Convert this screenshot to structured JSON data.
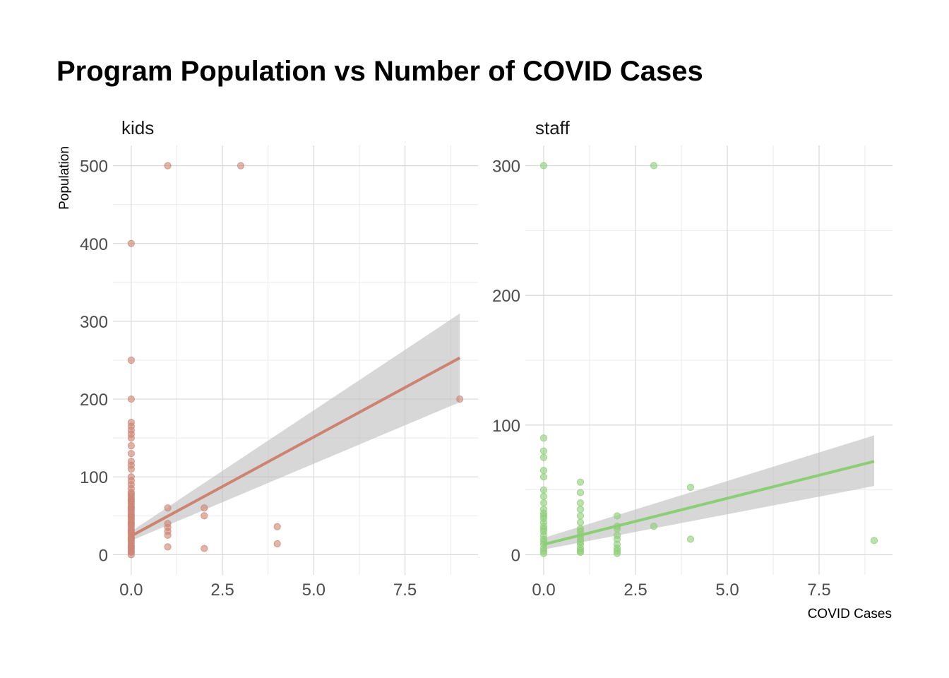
{
  "chart_data": {
    "type": "scatter",
    "title": "Program Population vs Number of COVID Cases",
    "xlabel": "COVID Cases",
    "ylabel": "Population",
    "grid": true,
    "legend": "none",
    "panels": [
      {
        "name": "kids",
        "color": "#cd8371",
        "xlim": [
          -0.5,
          9.5
        ],
        "ylim": [
          -26,
          526
        ],
        "xticks": [
          0,
          2.5,
          5,
          7.5
        ],
        "xtick_labels": [
          "0.0",
          "2.5",
          "5.0",
          "7.5"
        ],
        "yticks": [
          0,
          100,
          200,
          300,
          400,
          500
        ],
        "ytick_labels": [
          "0",
          "100",
          "200",
          "300",
          "400",
          "500"
        ],
        "points": [
          [
            0,
            0
          ],
          [
            0,
            3
          ],
          [
            0,
            5
          ],
          [
            0,
            8
          ],
          [
            0,
            10
          ],
          [
            0,
            12
          ],
          [
            0,
            15
          ],
          [
            0,
            18
          ],
          [
            0,
            20
          ],
          [
            0,
            22
          ],
          [
            0,
            25
          ],
          [
            0,
            28
          ],
          [
            0,
            30
          ],
          [
            0,
            32
          ],
          [
            0,
            35
          ],
          [
            0,
            38
          ],
          [
            0,
            40
          ],
          [
            0,
            42
          ],
          [
            0,
            45
          ],
          [
            0,
            48
          ],
          [
            0,
            50
          ],
          [
            0,
            52
          ],
          [
            0,
            55
          ],
          [
            0,
            58
          ],
          [
            0,
            60
          ],
          [
            0,
            62
          ],
          [
            0,
            65
          ],
          [
            0,
            68
          ],
          [
            0,
            70
          ],
          [
            0,
            72
          ],
          [
            0,
            75
          ],
          [
            0,
            78
          ],
          [
            0,
            80
          ],
          [
            0,
            85
          ],
          [
            0,
            90
          ],
          [
            0,
            95
          ],
          [
            0,
            100
          ],
          [
            0,
            110
          ],
          [
            0,
            115
          ],
          [
            0,
            120
          ],
          [
            0,
            130
          ],
          [
            0,
            140
          ],
          [
            0,
            150
          ],
          [
            0,
            155
          ],
          [
            0,
            160
          ],
          [
            0,
            165
          ],
          [
            0,
            170
          ],
          [
            0,
            200
          ],
          [
            0,
            250
          ],
          [
            0,
            400
          ],
          [
            1,
            500
          ],
          [
            1,
            60
          ],
          [
            1,
            40
          ],
          [
            1,
            35
          ],
          [
            1,
            30
          ],
          [
            1,
            25
          ],
          [
            1,
            10
          ],
          [
            2,
            60
          ],
          [
            2,
            50
          ],
          [
            2,
            8
          ],
          [
            3,
            500
          ],
          [
            4,
            36
          ],
          [
            4,
            14
          ],
          [
            9,
            200
          ]
        ],
        "fit": {
          "x": [
            0,
            9
          ],
          "y": [
            24,
            253
          ],
          "ci_lower": [
            18,
            196
          ],
          "ci_upper": [
            30,
            310
          ]
        }
      },
      {
        "name": "staff",
        "color": "#8cce75",
        "xlim": [
          -0.5,
          9.5
        ],
        "ylim": [
          -15.5,
          315.5
        ],
        "xticks": [
          0,
          2.5,
          5,
          7.5
        ],
        "xtick_labels": [
          "0.0",
          "2.5",
          "5.0",
          "7.5"
        ],
        "yticks": [
          0,
          100,
          200,
          300
        ],
        "ytick_labels": [
          "0",
          "100",
          "200",
          "300"
        ],
        "points": [
          [
            0,
            300
          ],
          [
            0,
            90
          ],
          [
            0,
            80
          ],
          [
            0,
            75
          ],
          [
            0,
            65
          ],
          [
            0,
            60
          ],
          [
            0,
            50
          ],
          [
            0,
            45
          ],
          [
            0,
            40
          ],
          [
            0,
            35
          ],
          [
            0,
            32
          ],
          [
            0,
            30
          ],
          [
            0,
            28
          ],
          [
            0,
            25
          ],
          [
            0,
            22
          ],
          [
            0,
            20
          ],
          [
            0,
            18
          ],
          [
            0,
            15
          ],
          [
            0,
            12
          ],
          [
            0,
            10
          ],
          [
            0,
            8
          ],
          [
            0,
            5
          ],
          [
            0,
            3
          ],
          [
            0,
            1
          ],
          [
            1,
            56
          ],
          [
            1,
            48
          ],
          [
            1,
            40
          ],
          [
            1,
            35
          ],
          [
            1,
            30
          ],
          [
            1,
            25
          ],
          [
            1,
            20
          ],
          [
            1,
            18
          ],
          [
            1,
            15
          ],
          [
            1,
            12
          ],
          [
            1,
            10
          ],
          [
            1,
            8
          ],
          [
            1,
            5
          ],
          [
            1,
            3
          ],
          [
            1,
            2
          ],
          [
            2,
            30
          ],
          [
            2,
            22
          ],
          [
            2,
            20
          ],
          [
            2,
            15
          ],
          [
            2,
            12
          ],
          [
            2,
            8
          ],
          [
            2,
            5
          ],
          [
            2,
            3
          ],
          [
            2,
            1
          ],
          [
            3,
            300
          ],
          [
            3,
            22
          ],
          [
            4,
            52
          ],
          [
            4,
            12
          ],
          [
            9,
            11
          ]
        ],
        "fit": {
          "x": [
            0,
            9
          ],
          "y": [
            8,
            72
          ],
          "ci_lower": [
            4,
            53
          ],
          "ci_upper": [
            13,
            92
          ]
        }
      }
    ]
  }
}
